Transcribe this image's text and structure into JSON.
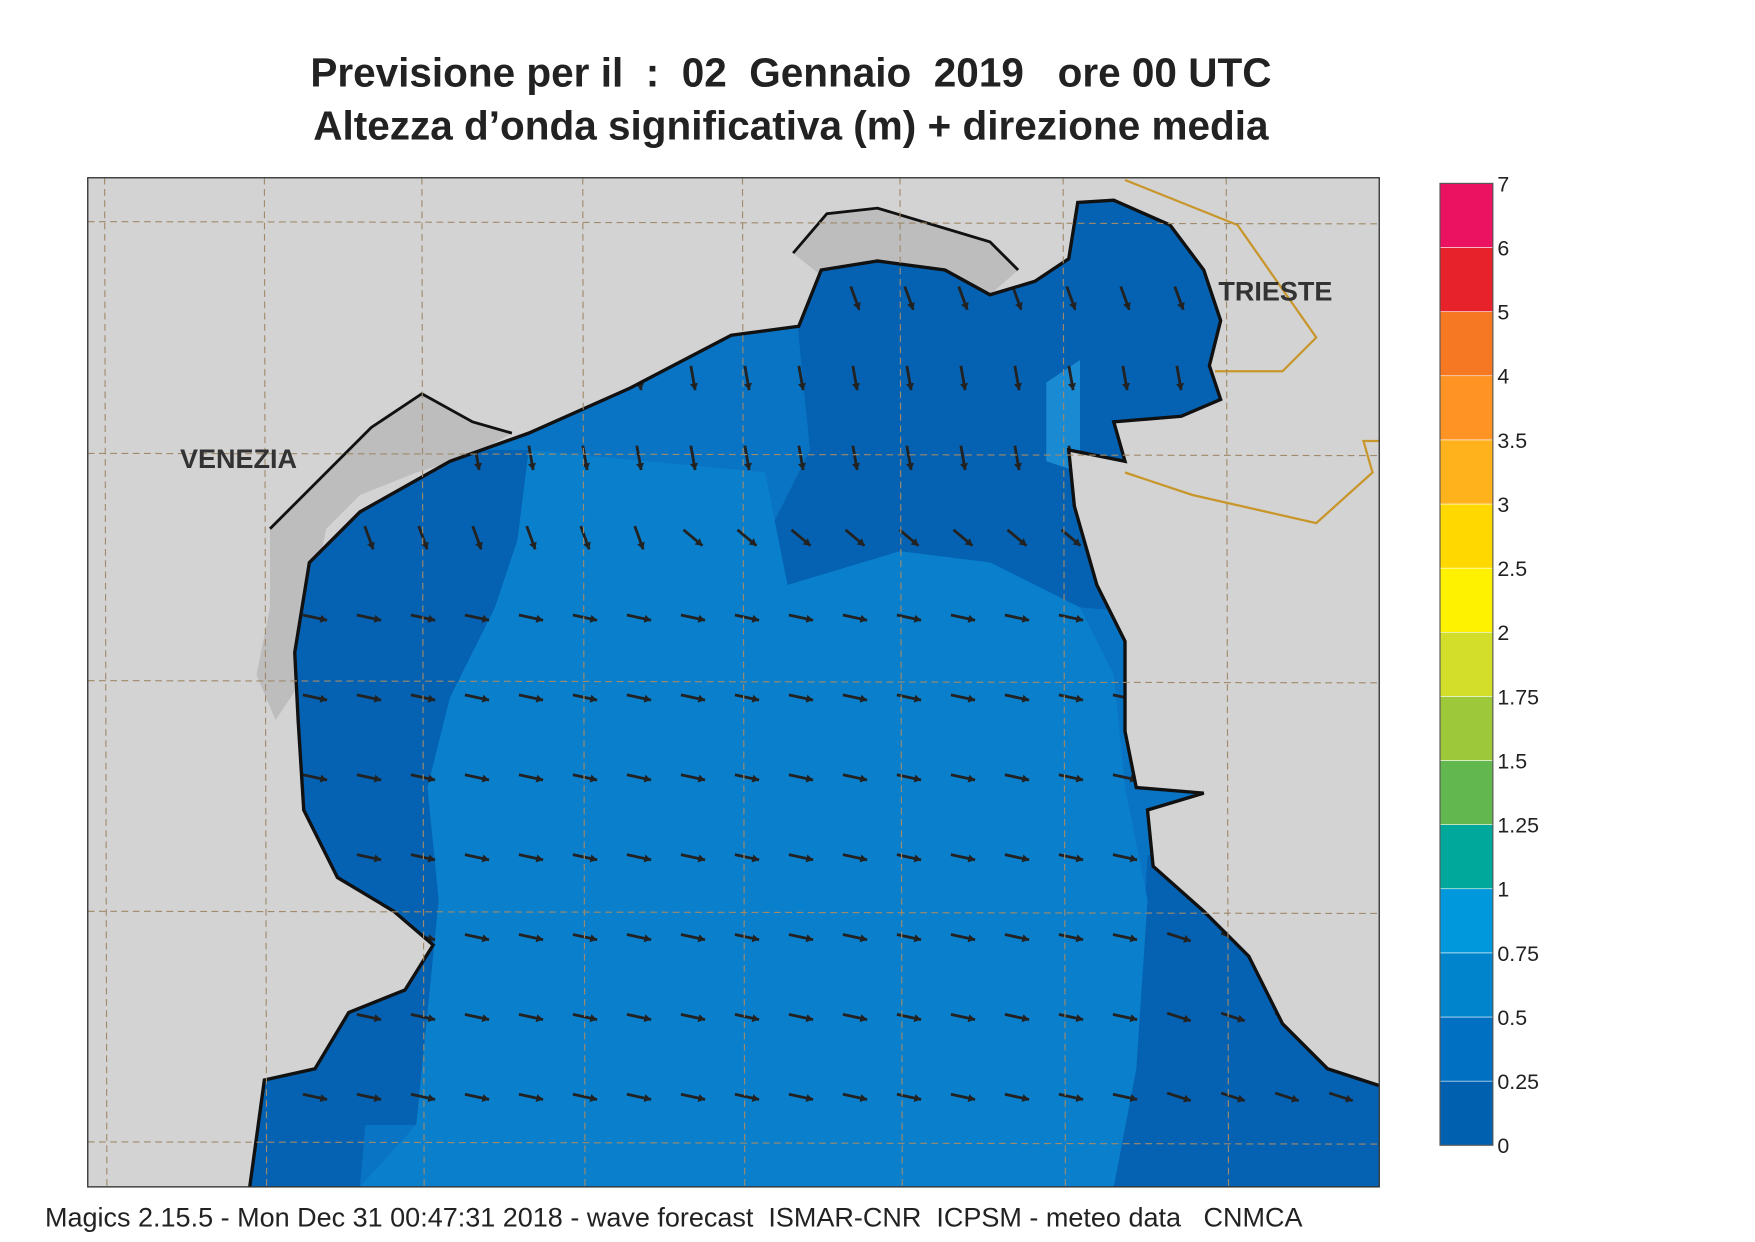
{
  "map": {
    "title": "Previsione per il  :  02  Gennaio  2019   ore 00 UTC",
    "subtitle": "Altezza d’onda significativa (m) + direzione media",
    "places": [
      "VENEZIA",
      "TRIESTE"
    ],
    "legend": {
      "levels": [
        0,
        0.25,
        0.5,
        0.75,
        1,
        1.25,
        1.5,
        1.75,
        2,
        2.5,
        3,
        3.5,
        4,
        5,
        6,
        7
      ],
      "colors": [
        "#0060b0",
        "#0070c2",
        "#0084cc",
        "#0098dc",
        "#00a89c",
        "#62b74e",
        "#9cc83a",
        "#d2de2a",
        "#fff200",
        "#ffd800",
        "#ffb21c",
        "#ff9424",
        "#f77822",
        "#e8222a",
        "#ec1262"
      ]
    },
    "footer": "Magics 2.15.5 - Mon Dec 31 00:47:31 2018 - wave forecast  ISMAR-CNR  ICPSM - meteo data   CNMCA"
  }
}
